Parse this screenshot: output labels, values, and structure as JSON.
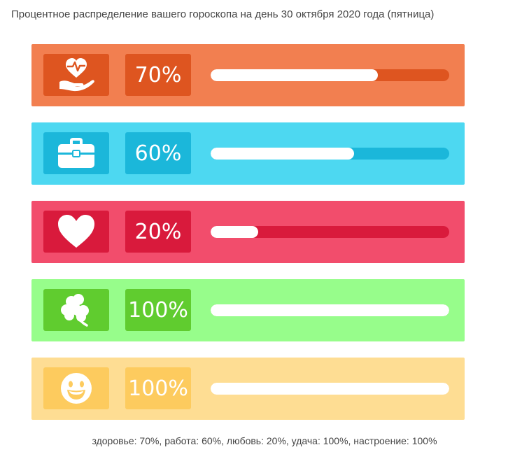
{
  "title": "Процентное распределение вашего гороскопа на день 30 октября 2020 года (пятница)",
  "footer": "здоровье: 70%, работа: 60%, любовь: 20%, удача: 100%, настроение: 100%",
  "chart_data": {
    "type": "bar",
    "categories": [
      "здоровье",
      "работа",
      "любовь",
      "удача",
      "настроение"
    ],
    "values": [
      70,
      60,
      20,
      100,
      100
    ],
    "value_labels": [
      "70%",
      "60%",
      "20%",
      "100%",
      "100%"
    ],
    "ylim": [
      0,
      100
    ]
  },
  "rows": [
    {
      "icon": "health-heart-hand-icon",
      "bg": "#f27f50",
      "accent": "#de5520",
      "label": "70%",
      "value": 70
    },
    {
      "icon": "briefcase-icon",
      "bg": "#4dd8f1",
      "accent": "#1bb7da",
      "label": "60%",
      "value": 60
    },
    {
      "icon": "heart-icon",
      "bg": "#f24d6c",
      "accent": "#d91a3c",
      "label": "20%",
      "value": 20
    },
    {
      "icon": "clover-icon",
      "bg": "#97fd8b",
      "accent": "#60cc2f",
      "label": "100%",
      "value": 100
    },
    {
      "icon": "smiley-icon",
      "bg": "#fedd93",
      "accent": "#fdcb5e",
      "label": "100%",
      "value": 100
    }
  ]
}
